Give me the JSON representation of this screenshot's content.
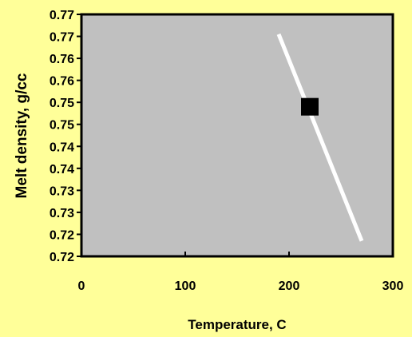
{
  "chart_data": {
    "type": "scatter",
    "title": "",
    "xlabel": "Temperature, C",
    "ylabel": "Melt density, g/cc",
    "xlim": [
      0,
      300
    ],
    "ylim": [
      0.715,
      0.77
    ],
    "x_ticks": [
      0,
      100,
      200,
      300
    ],
    "x_tick_labels": [
      "0",
      "100",
      "200",
      "300"
    ],
    "y_ticks": [
      0.715,
      0.72,
      0.725,
      0.73,
      0.735,
      0.74,
      0.745,
      0.75,
      0.755,
      0.76,
      0.765,
      0.77
    ],
    "y_tick_labels": [
      "0.72",
      "0.72",
      "0.73",
      "0.73",
      "0.74",
      "0.74",
      "0.75",
      "0.75",
      "0.76",
      "0.76",
      "0.77",
      "0.77"
    ],
    "grid": false,
    "legend": "none",
    "series": [
      {
        "kind": "line",
        "color": "#FFFFFF",
        "points": [
          {
            "x": 190,
            "y": 0.7655
          },
          {
            "x": 270,
            "y": 0.7185
          }
        ]
      },
      {
        "kind": "marker",
        "marker": "square",
        "color": "#000000",
        "points": [
          {
            "x": 220,
            "y": 0.749
          }
        ]
      }
    ],
    "colors": {
      "page_background": "#FFFF99",
      "plot_background": "#C0C0C0",
      "axes": "#000000"
    }
  }
}
